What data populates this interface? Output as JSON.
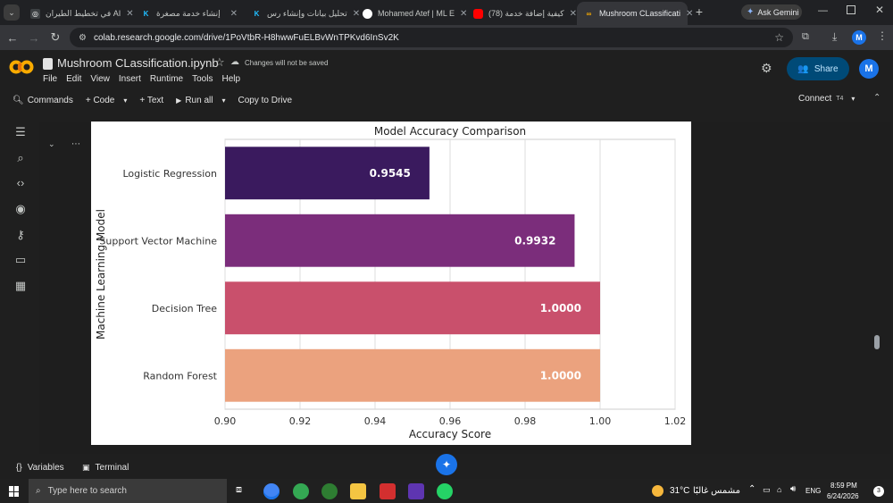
{
  "browser": {
    "tabs": [
      {
        "title": "في تخطيط الطيران AI",
        "icon": "gemini-icon",
        "active": false
      },
      {
        "title": "إنشاء خدمة مصغرة",
        "icon": "k-icon",
        "active": false
      },
      {
        "title": "تحليل بيانات وإنشاء رس",
        "icon": "k-icon",
        "active": false
      },
      {
        "title": "Mohamed Atef | ML E",
        "icon": "github-icon",
        "active": false
      },
      {
        "title": "(78) كيفية إضافة خدمة",
        "icon": "youtube-icon",
        "active": false
      },
      {
        "title": "Mushroom CLassificati",
        "icon": "colab-icon",
        "active": true
      }
    ],
    "ask_gemini": "Ask Gemini",
    "url": "colab.research.google.com/drive/1PoVtbR-H8hwwFuELBvWnTPKvd6InSv2K",
    "profile_initial": "M"
  },
  "colab": {
    "notebook_title": "Mushroom CLassification.ipynb",
    "save_status": "Changes will not be saved",
    "menu": [
      "File",
      "Edit",
      "View",
      "Insert",
      "Runtime",
      "Tools",
      "Help"
    ],
    "share_label": "Share",
    "avatar_initial": "M",
    "toolbar": {
      "commands": "Commands",
      "code": "+ Code",
      "text": "+ Text",
      "run_all": "Run all",
      "copy_to_drive": "Copy to Drive",
      "connect": "Connect",
      "connect_badge": "T4"
    },
    "bottom": {
      "variables": "Variables",
      "terminal": "Terminal"
    }
  },
  "chart_data": {
    "type": "bar",
    "orientation": "horizontal",
    "title": "Model Accuracy Comparison",
    "xlabel": "Accuracy Score",
    "ylabel": "Machine Learning Model",
    "categories": [
      "Logistic Regression",
      "Support Vector Machine",
      "Decision Tree",
      "Random Forest"
    ],
    "values": [
      0.9545,
      0.9932,
      1.0,
      1.0
    ],
    "value_labels": [
      "0.9545",
      "0.9932",
      "1.0000",
      "1.0000"
    ],
    "colors": [
      "#3a1a5e",
      "#7b2d7b",
      "#c9506c",
      "#eba27e"
    ],
    "xlim": [
      0.9,
      1.02
    ],
    "xticks": [
      "0.90",
      "0.92",
      "0.94",
      "0.96",
      "0.98",
      "1.00",
      "1.02"
    ],
    "grid": true
  },
  "taskbar": {
    "search_placeholder": "Type here to search",
    "weather": "31°C",
    "weather_text": "مشمس غالبًا",
    "lang": "ENG",
    "time": "8:59 PM",
    "date": "6/24/2026",
    "notif_count": "3"
  }
}
